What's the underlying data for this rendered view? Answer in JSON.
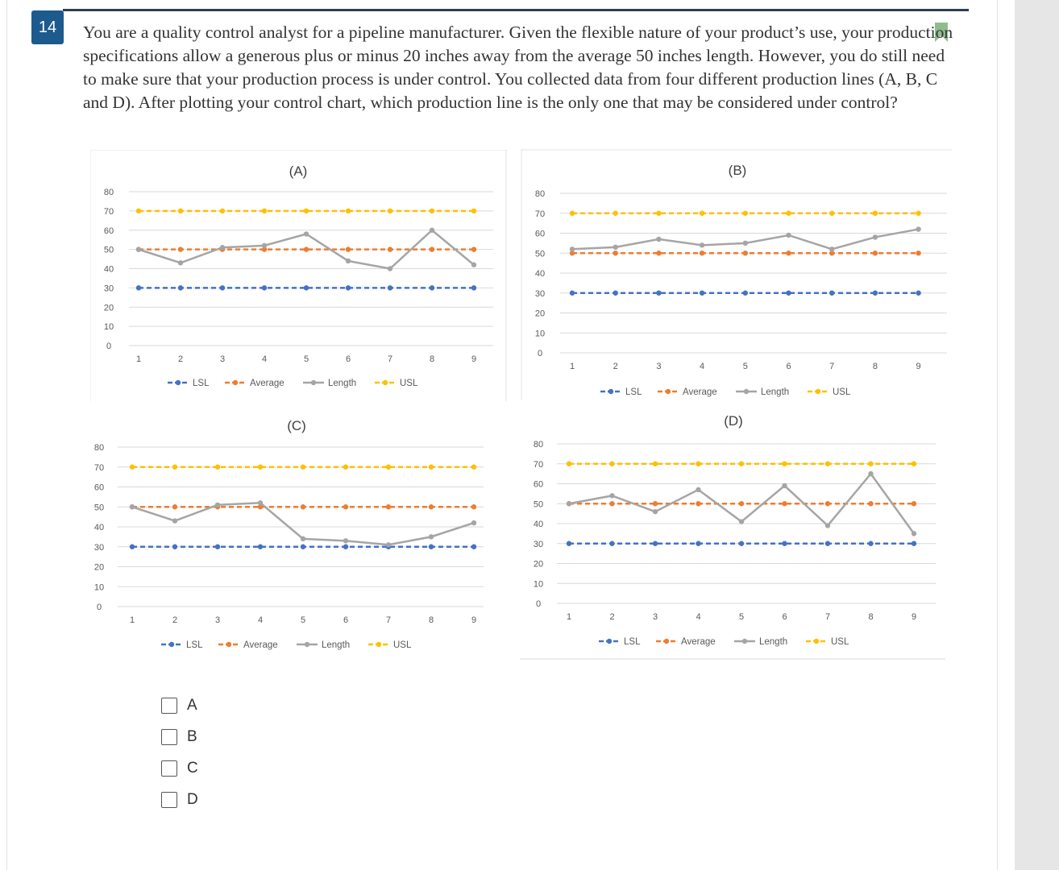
{
  "question": {
    "number": "14",
    "text": "You are a quality control analyst for a pipeline manufacturer. Given the flexible nature of your product’s use, your production specifications allow a generous plus or minus 20 inches away from the average 50 inches length. However, you do still need to make sure that your production process is under control. You collected data from four different production lines (A, B, C and D). After plotting your control chart, which production line is the only one that may be considered under control?"
  },
  "options": [
    {
      "label": "A"
    },
    {
      "label": "B"
    },
    {
      "label": "C"
    },
    {
      "label": "D"
    }
  ],
  "colors": {
    "lsl": "#4472c4",
    "average": "#ed7d31",
    "length": "#a5a5a5",
    "usl": "#ffc000",
    "grid": "#d9d9d9",
    "badge": "#1d5a8e",
    "bookmark": "#8fbc8f"
  },
  "chart_data": [
    {
      "type": "line",
      "title": "(A)",
      "categories": [
        "1",
        "2",
        "3",
        "4",
        "5",
        "6",
        "7",
        "8",
        "9"
      ],
      "ylim": [
        0,
        80
      ],
      "yticks": [
        "0",
        "10",
        "20",
        "30",
        "40",
        "50",
        "60",
        "70",
        "80"
      ],
      "legend": "bottom",
      "series": [
        {
          "name": "LSL",
          "values": [
            30,
            30,
            30,
            30,
            30,
            30,
            30,
            30,
            30
          ]
        },
        {
          "name": "Average",
          "values": [
            50,
            50,
            50,
            50,
            50,
            50,
            50,
            50,
            50
          ]
        },
        {
          "name": "Length",
          "values": [
            50,
            43,
            51,
            52,
            58,
            44,
            40,
            60,
            42
          ]
        },
        {
          "name": "USL",
          "values": [
            70,
            70,
            70,
            70,
            70,
            70,
            70,
            70,
            70
          ]
        }
      ]
    },
    {
      "type": "line",
      "title": "(B)",
      "categories": [
        "1",
        "2",
        "3",
        "4",
        "5",
        "6",
        "7",
        "8",
        "9"
      ],
      "ylim": [
        0,
        80
      ],
      "yticks": [
        "0",
        "10",
        "20",
        "30",
        "40",
        "50",
        "60",
        "70",
        "80"
      ],
      "legend": "bottom",
      "series": [
        {
          "name": "LSL",
          "values": [
            30,
            30,
            30,
            30,
            30,
            30,
            30,
            30,
            30
          ]
        },
        {
          "name": "Average",
          "values": [
            50,
            50,
            50,
            50,
            50,
            50,
            50,
            50,
            50
          ]
        },
        {
          "name": "Length",
          "values": [
            52,
            53,
            57,
            54,
            55,
            59,
            52,
            58,
            62
          ]
        },
        {
          "name": "USL",
          "values": [
            70,
            70,
            70,
            70,
            70,
            70,
            70,
            70,
            70
          ]
        }
      ]
    },
    {
      "type": "line",
      "title": "(C)",
      "categories": [
        "1",
        "2",
        "3",
        "4",
        "5",
        "6",
        "7",
        "8",
        "9"
      ],
      "ylim": [
        0,
        80
      ],
      "yticks": [
        "0",
        "10",
        "20",
        "30",
        "40",
        "50",
        "60",
        "70",
        "80"
      ],
      "legend": "bottom",
      "series": [
        {
          "name": "LSL",
          "values": [
            30,
            30,
            30,
            30,
            30,
            30,
            30,
            30,
            30
          ]
        },
        {
          "name": "Average",
          "values": [
            50,
            50,
            50,
            50,
            50,
            50,
            50,
            50,
            50
          ]
        },
        {
          "name": "Length",
          "values": [
            50,
            43,
            51,
            52,
            34,
            33,
            31,
            35,
            42
          ]
        },
        {
          "name": "USL",
          "values": [
            70,
            70,
            70,
            70,
            70,
            70,
            70,
            70,
            70
          ]
        }
      ]
    },
    {
      "type": "line",
      "title": "(D)",
      "categories": [
        "1",
        "2",
        "3",
        "4",
        "5",
        "6",
        "7",
        "8",
        "9"
      ],
      "ylim": [
        0,
        80
      ],
      "yticks": [
        "0",
        "10",
        "20",
        "30",
        "40",
        "50",
        "60",
        "70",
        "80"
      ],
      "legend": "bottom",
      "series": [
        {
          "name": "LSL",
          "values": [
            30,
            30,
            30,
            30,
            30,
            30,
            30,
            30,
            30
          ]
        },
        {
          "name": "Average",
          "values": [
            50,
            50,
            50,
            50,
            50,
            50,
            50,
            50,
            50
          ]
        },
        {
          "name": "Length",
          "values": [
            50,
            54,
            46,
            57,
            41,
            59,
            39,
            65,
            35
          ]
        },
        {
          "name": "USL",
          "values": [
            70,
            70,
            70,
            70,
            70,
            70,
            70,
            70,
            70
          ]
        }
      ]
    }
  ]
}
